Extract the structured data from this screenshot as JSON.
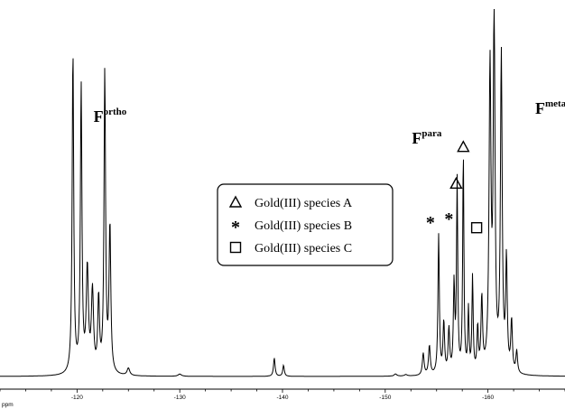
{
  "chart_data": {
    "type": "line",
    "xlabel": "ppm",
    "x_reversed": true,
    "xlim": [
      -112.5,
      -167.5
    ],
    "xticks": [
      -120,
      -130,
      -140,
      -150,
      -160
    ],
    "tick_labels": [
      "-120",
      "-130",
      "-140",
      "-150",
      "-160"
    ],
    "peaks": [
      {
        "x": -119.6,
        "h": 0.88,
        "w": 0.18
      },
      {
        "x": -120.4,
        "h": 0.78,
        "w": 0.18
      },
      {
        "x": -121.0,
        "h": 0.28,
        "w": 0.25
      },
      {
        "x": -121.5,
        "h": 0.22,
        "w": 0.25
      },
      {
        "x": -122.1,
        "h": 0.2,
        "w": 0.2
      },
      {
        "x": -122.7,
        "h": 0.82,
        "w": 0.18
      },
      {
        "x": -123.2,
        "h": 0.4,
        "w": 0.2
      },
      {
        "x": -125.0,
        "h": 0.02,
        "w": 0.3
      },
      {
        "x": -130.0,
        "h": 0.006,
        "w": 0.4
      },
      {
        "x": -139.2,
        "h": 0.05,
        "w": 0.18
      },
      {
        "x": -140.1,
        "h": 0.03,
        "w": 0.18
      },
      {
        "x": -151.0,
        "h": 0.006,
        "w": 0.3
      },
      {
        "x": -152.0,
        "h": 0.004,
        "w": 0.3
      },
      {
        "x": -153.7,
        "h": 0.06,
        "w": 0.2
      },
      {
        "x": -154.3,
        "h": 0.08,
        "w": 0.2
      },
      {
        "x": -155.2,
        "h": 0.38,
        "w": 0.16
      },
      {
        "x": -155.7,
        "h": 0.14,
        "w": 0.18
      },
      {
        "x": -156.2,
        "h": 0.12,
        "w": 0.18
      },
      {
        "x": -156.7,
        "h": 0.24,
        "w": 0.16
      },
      {
        "x": -157.0,
        "h": 0.52,
        "w": 0.14
      },
      {
        "x": -157.6,
        "h": 0.6,
        "w": 0.14
      },
      {
        "x": -158.1,
        "h": 0.17,
        "w": 0.14
      },
      {
        "x": -158.5,
        "h": 0.26,
        "w": 0.14
      },
      {
        "x": -159.0,
        "h": 0.12,
        "w": 0.16
      },
      {
        "x": -159.4,
        "h": 0.2,
        "w": 0.18
      },
      {
        "x": -160.2,
        "h": 0.82,
        "w": 0.22
      },
      {
        "x": -160.6,
        "h": 0.98,
        "w": 0.2
      },
      {
        "x": -161.3,
        "h": 0.86,
        "w": 0.2
      },
      {
        "x": -161.8,
        "h": 0.3,
        "w": 0.18
      },
      {
        "x": -162.3,
        "h": 0.14,
        "w": 0.18
      },
      {
        "x": -162.8,
        "h": 0.06,
        "w": 0.18
      }
    ],
    "peak_labels": [
      {
        "name": "F",
        "sup": "ortho",
        "x": -121.6
      },
      {
        "name": "F",
        "sup": "para",
        "x": -152.6
      },
      {
        "name": "F",
        "sup": "meta",
        "x": -164.6
      }
    ],
    "markers": [
      {
        "symbol": "triangle",
        "x": -157.6,
        "h": 0.62
      },
      {
        "symbol": "triangle",
        "x": -156.9,
        "h": 0.52
      },
      {
        "symbol": "star",
        "x": -154.4,
        "h": 0.42
      },
      {
        "symbol": "star",
        "x": -156.2,
        "h": 0.43
      },
      {
        "symbol": "square",
        "x": -158.9,
        "h": 0.4
      }
    ],
    "legend": {
      "position": "center",
      "entries": [
        {
          "symbol": "triangle",
          "label": "Gold(III) species A"
        },
        {
          "symbol": "star",
          "label": "Gold(III) species B"
        },
        {
          "symbol": "square",
          "label": "Gold(III) species C"
        }
      ]
    },
    "grid": false
  }
}
